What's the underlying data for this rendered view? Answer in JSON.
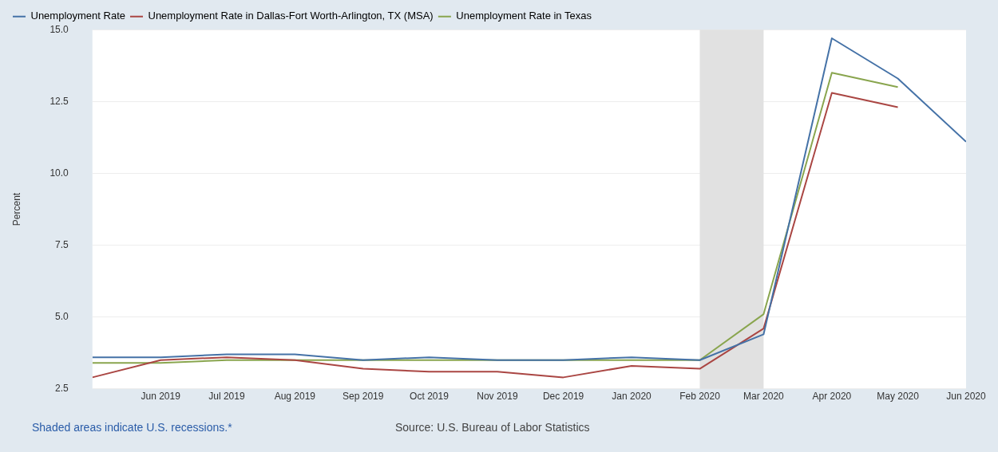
{
  "chart_data": {
    "type": "line",
    "ylabel": "Percent",
    "x": [
      "2019-05",
      "2019-06",
      "2019-07",
      "2019-08",
      "2019-09",
      "2019-10",
      "2019-11",
      "2019-12",
      "2020-01",
      "2020-02",
      "2020-03",
      "2020-04",
      "2020-05",
      "2020-06"
    ],
    "series": [
      {
        "name": "Unemployment Rate",
        "color": "#4572a7",
        "values": [
          3.6,
          3.6,
          3.7,
          3.7,
          3.5,
          3.6,
          3.5,
          3.5,
          3.6,
          3.5,
          4.4,
          14.7,
          13.3,
          11.1
        ]
      },
      {
        "name": "Unemployment Rate in Dallas-Fort Worth-Arlington, TX (MSA)",
        "color": "#aa4643",
        "values": [
          2.9,
          3.5,
          3.6,
          3.5,
          3.2,
          3.1,
          3.1,
          2.9,
          3.3,
          3.2,
          4.6,
          12.8,
          12.3,
          null
        ]
      },
      {
        "name": "Unemployment Rate in Texas",
        "color": "#89a54e",
        "values": [
          3.4,
          3.4,
          3.5,
          3.5,
          3.5,
          3.5,
          3.5,
          3.5,
          3.5,
          3.5,
          5.1,
          13.5,
          13.0,
          null
        ]
      }
    ],
    "xlim": [
      "2019-05",
      "2020-06"
    ],
    "xticks": [
      {
        "value": "2019-06",
        "label": "Jun 2019"
      },
      {
        "value": "2019-07",
        "label": "Jul 2019"
      },
      {
        "value": "2019-08",
        "label": "Aug 2019"
      },
      {
        "value": "2019-09",
        "label": "Sep 2019"
      },
      {
        "value": "2019-10",
        "label": "Oct 2019"
      },
      {
        "value": "2019-11",
        "label": "Nov 2019"
      },
      {
        "value": "2019-12",
        "label": "Dec 2019"
      },
      {
        "value": "2020-01",
        "label": "Jan 2020"
      },
      {
        "value": "2020-02",
        "label": "Feb 2020"
      },
      {
        "value": "2020-03",
        "label": "Mar 2020"
      },
      {
        "value": "2020-04",
        "label": "Apr 2020"
      },
      {
        "value": "2020-05",
        "label": "May 2020"
      },
      {
        "value": "2020-06",
        "label": "Jun 2020"
      }
    ],
    "ylim": [
      2.5,
      15
    ],
    "yticks": [
      {
        "value": 2.5,
        "label": "2.5"
      },
      {
        "value": 5,
        "label": "5.0"
      },
      {
        "value": 7.5,
        "label": "7.5"
      },
      {
        "value": 10,
        "label": "10.0"
      },
      {
        "value": 12.5,
        "label": "12.5"
      },
      {
        "value": 15,
        "label": "15.0"
      }
    ],
    "bands": [
      {
        "axis": "x",
        "from": "2020-02",
        "to": "2020-03",
        "color": "#e1e1e1"
      }
    ],
    "annotations": [
      "Shaded areas indicate U.S. recessions.*",
      "Source: U.S. Bureau of Labor Statistics"
    ],
    "grid": "y",
    "legend": "top left",
    "marker": "none",
    "line_style": "solid"
  }
}
